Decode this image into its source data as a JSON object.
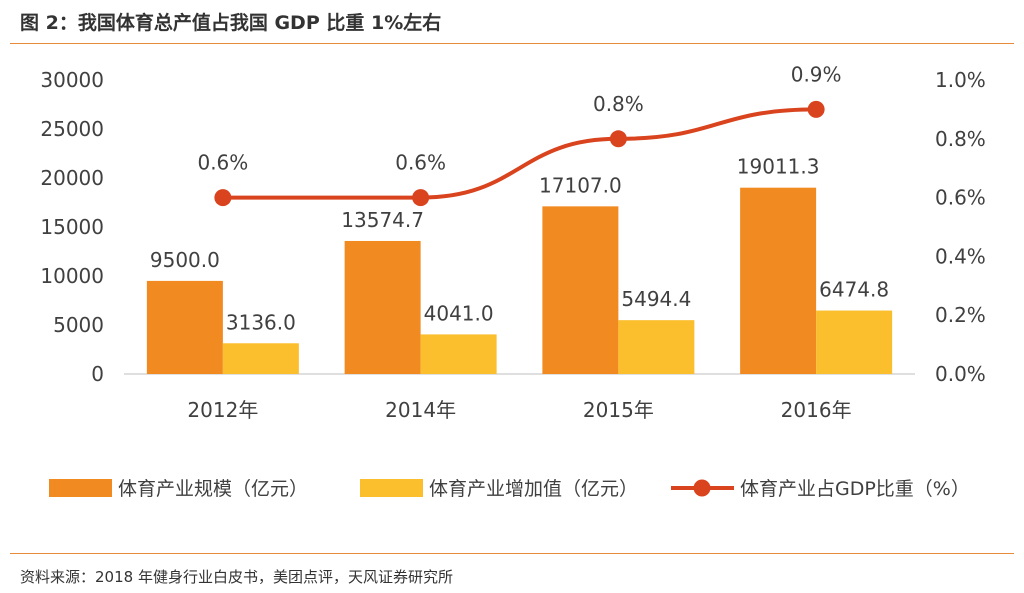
{
  "header": {
    "title": "图 2：我国体育总产值占我国 GDP 比重 1%左右"
  },
  "footer": {
    "source": "资料来源：2018 年健身行业白皮书，美团点评，天风证券研究所"
  },
  "colors": {
    "bar_scale": "#f28a22",
    "bar_value_added": "#fbbf2d",
    "line": "#d9441f",
    "rule": "#e58b3a"
  },
  "chart_data": {
    "type": "bar",
    "categories": [
      "2012年",
      "2014年",
      "2015年",
      "2016年"
    ],
    "series": [
      {
        "name": "体育产业规模（亿元）",
        "type": "bar",
        "axis": "left",
        "values": [
          9500.0,
          13574.7,
          17107.0,
          19011.3
        ],
        "labels": [
          "9500.0",
          "13574.7",
          "17107.0",
          "19011.3"
        ]
      },
      {
        "name": "体育产业增加值（亿元）",
        "type": "bar",
        "axis": "left",
        "values": [
          3136.0,
          4041.0,
          5494.4,
          6474.8
        ],
        "labels": [
          "3136.0",
          "4041.0",
          "5494.4",
          "6474.8"
        ]
      },
      {
        "name": "体育产业占GDP比重（%）",
        "type": "line",
        "axis": "right",
        "values": [
          0.6,
          0.6,
          0.8,
          0.9
        ],
        "labels": [
          "0.6%",
          "0.6%",
          "0.8%",
          "0.9%"
        ]
      }
    ],
    "ylim": [
      0,
      30000
    ],
    "yticks": [
      "0",
      "5000",
      "10000",
      "15000",
      "20000",
      "25000",
      "30000"
    ],
    "y2lim": [
      0,
      1.0
    ],
    "y2ticks": [
      "0.0%",
      "0.2%",
      "0.4%",
      "0.6%",
      "0.8%",
      "1.0%"
    ],
    "grid": false,
    "legend": "bottom"
  }
}
